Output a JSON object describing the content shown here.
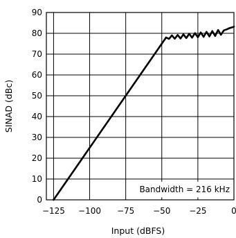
{
  "chart_data": {
    "type": "line",
    "xlabel": "Input (dBFS)",
    "ylabel": "SINAD (dBc)",
    "xlim": [
      -130,
      0
    ],
    "ylim": [
      0,
      90
    ],
    "xticks": [
      -125,
      -100,
      -75,
      -50,
      -25,
      0
    ],
    "xtick_labels": [
      "−125",
      "−100",
      "−75",
      "−50",
      "−25",
      "0"
    ],
    "yticks": [
      0,
      10,
      20,
      30,
      40,
      50,
      60,
      70,
      80,
      90
    ],
    "ytick_labels": [
      "0",
      "10",
      "20",
      "30",
      "40",
      "50",
      "60",
      "70",
      "80",
      "90"
    ],
    "grid": true,
    "annotation": "Bandwidth = 216 kHz",
    "series": [
      {
        "color": "#000000",
        "x": [
          -125,
          -47,
          -45,
          -43,
          -41,
          -39,
          -37,
          -35,
          -33,
          -31,
          -29,
          -27,
          -25,
          -23,
          -21,
          -19,
          -17,
          -15,
          -13,
          -11,
          -9,
          -7,
          -5,
          -3,
          -1,
          0
        ],
        "y": [
          0,
          78,
          77.3,
          79,
          77.4,
          79.2,
          77.5,
          79.5,
          77.7,
          79.8,
          77.9,
          80.1,
          78.1,
          80.4,
          78.3,
          80.7,
          78.5,
          81.1,
          78.7,
          81.6,
          79.3,
          81.4,
          81.9,
          82.5,
          82.9,
          83.2
        ]
      }
    ]
  }
}
